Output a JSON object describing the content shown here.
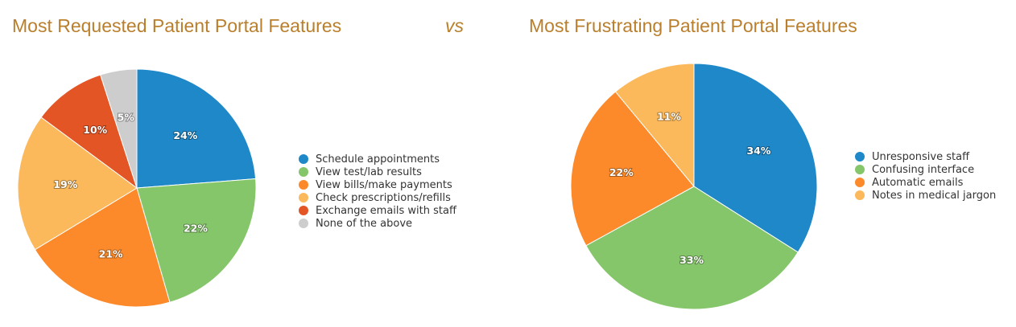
{
  "vs_label": "vs",
  "chart_data": [
    {
      "type": "pie",
      "title": "Most Requested Patient Portal Features",
      "categories": [
        "Schedule appointments",
        "View test/lab results",
        "View bills/make payments",
        "Check prescriptions/refills",
        "Exchange emails with staff",
        "None of the above"
      ],
      "values": [
        24,
        22,
        21,
        19,
        10,
        5
      ],
      "labels": [
        "24%",
        "22%",
        "21%",
        "19%",
        "10%",
        "5%"
      ],
      "colors": [
        "#1f88c8",
        "#86c66a",
        "#fc8a2a",
        "#fbb95c",
        "#e45525",
        "#cdcdcd"
      ],
      "legend": "right"
    },
    {
      "type": "pie",
      "title": "Most Frustrating Patient Portal Features",
      "categories": [
        "Unresponsive staff",
        "Confusing interface",
        "Automatic emails",
        "Notes in medical jargon"
      ],
      "values": [
        34,
        33,
        22,
        11
      ],
      "labels": [
        "34%",
        "33%",
        "22%",
        "11%"
      ],
      "colors": [
        "#1f88c8",
        "#86c66a",
        "#fc8a2a",
        "#fbb95c"
      ],
      "legend": "right"
    }
  ]
}
